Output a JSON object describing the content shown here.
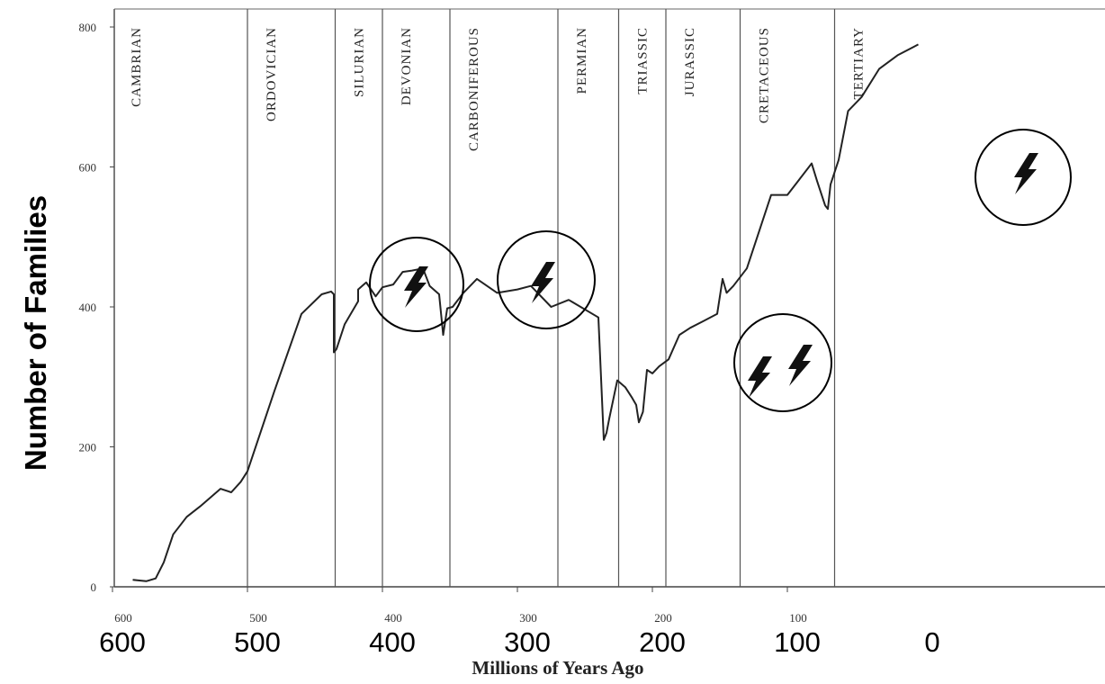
{
  "chart_data": {
    "type": "line",
    "title": "",
    "xlabel": "Millions of Years Ago",
    "ylabel": "Number of Families",
    "xlim": [
      600,
      0
    ],
    "ylim": [
      0,
      800
    ],
    "x_ticks_original": [
      "600",
      "500",
      "400",
      "300",
      "200",
      "100"
    ],
    "x_ticks_overlay": [
      "600",
      "500",
      "400",
      "300",
      "200",
      "100",
      "0"
    ],
    "y_ticks": [
      "0",
      "200",
      "400",
      "600",
      "800"
    ],
    "periods": [
      {
        "name": "CAMBRIAN",
        "end": 500
      },
      {
        "name": "ORDOVICIAN",
        "end": 435
      },
      {
        "name": "SILURIAN",
        "end": 400
      },
      {
        "name": "DEVONIAN",
        "end": 350
      },
      {
        "name": "CARBONIFEROUS",
        "end": 270
      },
      {
        "name": "PERMIAN",
        "end": 225
      },
      {
        "name": "TRIASSIC",
        "end": 190
      },
      {
        "name": "JURASSIC",
        "end": 135
      },
      {
        "name": "CRETACEOUS",
        "end": 65
      },
      {
        "name": "TERTIARY",
        "end": 0
      }
    ],
    "series": [
      {
        "name": "",
        "x": [
          585,
          575,
          568,
          562,
          555,
          545,
          535,
          520,
          512,
          505,
          500,
          480,
          460,
          445,
          438,
          436,
          436,
          434,
          428,
          418,
          418,
          412,
          405,
          400,
          392,
          385,
          378,
          370,
          365,
          358,
          355,
          352,
          348,
          340,
          330,
          315,
          300,
          290,
          275,
          262,
          240,
          236,
          234,
          232,
          226,
          220,
          215,
          212,
          210,
          207,
          204,
          200,
          195,
          188,
          180,
          172,
          162,
          152,
          148,
          145,
          140,
          130,
          112,
          100,
          92,
          82,
          78,
          72,
          70,
          68,
          62,
          55,
          45,
          32,
          18,
          3
        ],
        "y": [
          10,
          8,
          12,
          35,
          75,
          100,
          115,
          140,
          135,
          150,
          165,
          280,
          390,
          418,
          422,
          418,
          335,
          340,
          375,
          408,
          425,
          435,
          415,
          428,
          432,
          450,
          452,
          455,
          430,
          418,
          360,
          398,
          400,
          420,
          440,
          420,
          425,
          430,
          400,
          410,
          385,
          210,
          220,
          240,
          295,
          285,
          270,
          260,
          235,
          250,
          310,
          305,
          315,
          325,
          360,
          370,
          380,
          390,
          440,
          420,
          430,
          455,
          560,
          560,
          580,
          605,
          580,
          545,
          540,
          575,
          610,
          680,
          700,
          740,
          760,
          775
        ]
      }
    ],
    "annotations": [
      "lightning-bolt-icon",
      "lightning-bolt-icon",
      "lightning-bolt-icon",
      "lightning-bolt-icon",
      "lightning-bolt-icon"
    ],
    "colors": {
      "line": "#222222",
      "grid": "#555555",
      "icon": "#111111"
    }
  }
}
